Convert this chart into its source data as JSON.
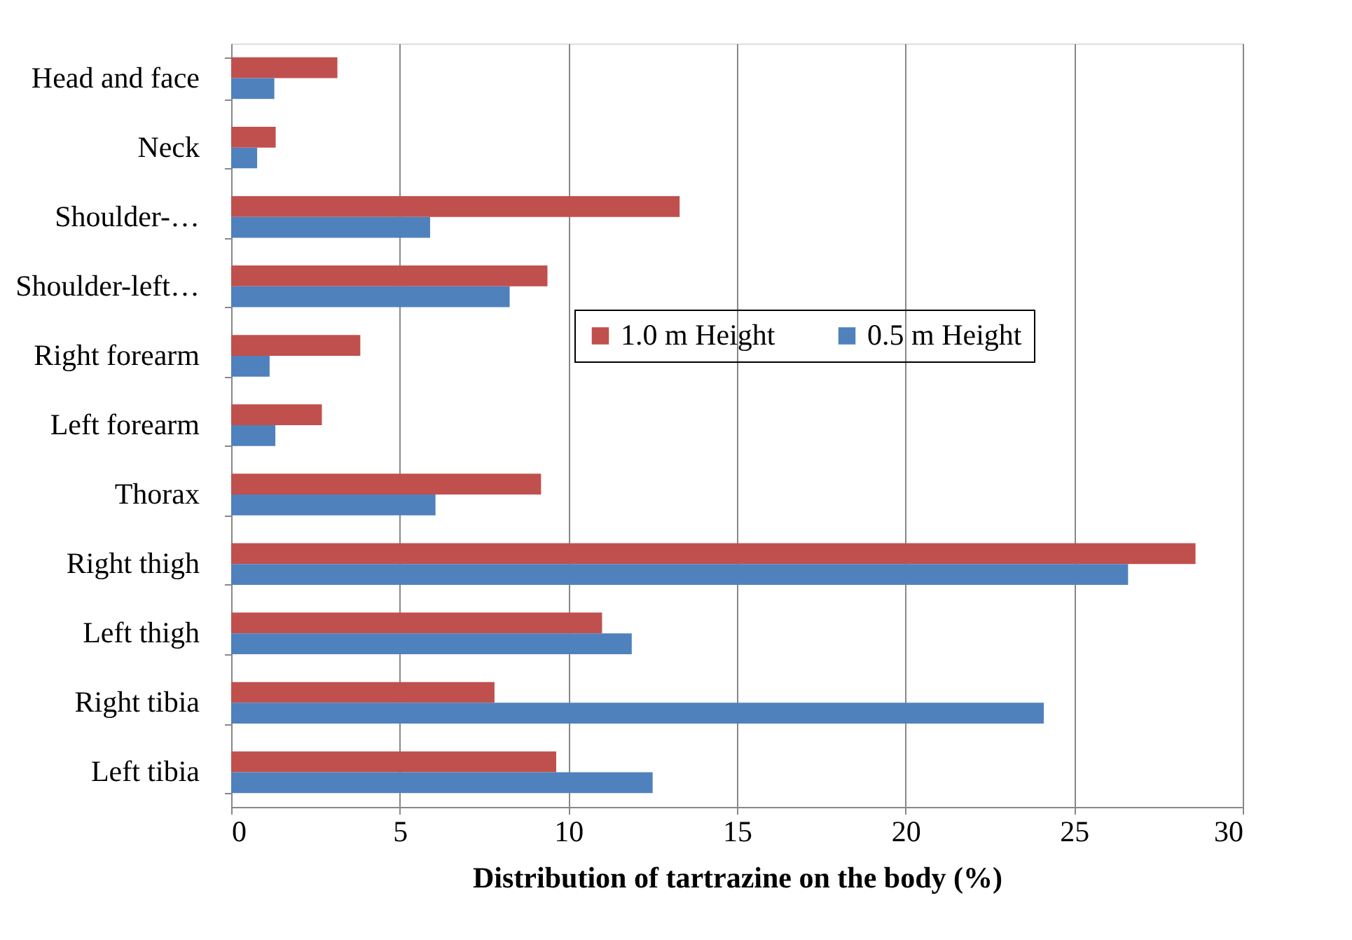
{
  "chart_data": {
    "type": "bar",
    "orientation": "horizontal",
    "categories": [
      "Head and face",
      "Neck",
      "Shoulder-…",
      "Shoulder-left…",
      "Right forearm",
      "Left forearm",
      "Thorax",
      "Right thigh",
      "Left thigh",
      "Right tibia",
      "Left tibia"
    ],
    "series": [
      {
        "name": "1.0 m Height",
        "color": "#c0504d",
        "values": [
          3.15,
          1.32,
          13.3,
          9.38,
          3.83,
          2.69,
          9.19,
          28.6,
          11.0,
          7.81,
          9.64
        ]
      },
      {
        "name": "0.5 m Height",
        "color": "#4f81bd",
        "values": [
          1.28,
          0.77,
          5.9,
          8.26,
          1.14,
          1.31,
          6.06,
          26.6,
          11.88,
          24.1,
          12.5
        ]
      }
    ],
    "xlabel": "Distribution of tartrazine on the body (%)",
    "xlim": [
      0,
      30
    ],
    "xticks": [
      0,
      5,
      10,
      15,
      20,
      25,
      30
    ],
    "grid": "x",
    "legend": "right"
  }
}
